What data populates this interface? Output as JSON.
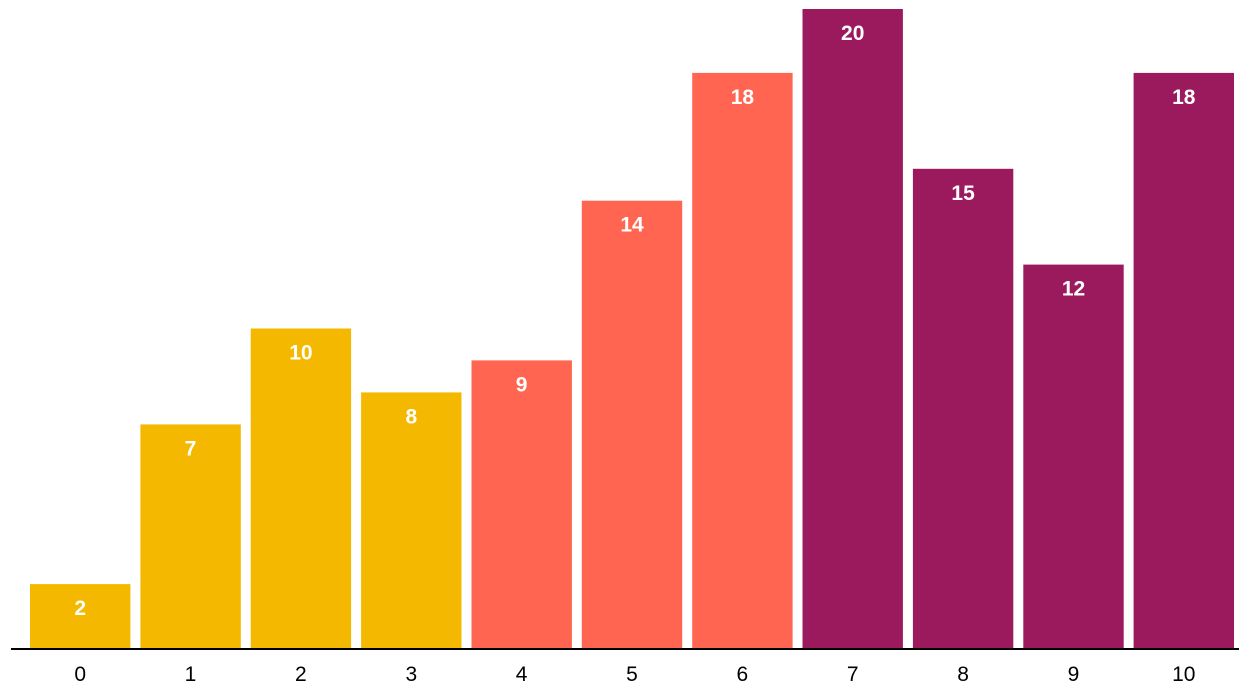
{
  "chart_data": {
    "type": "bar",
    "title": "",
    "xlabel": "",
    "ylabel": "",
    "categories": [
      "0",
      "1",
      "2",
      "3",
      "4",
      "5",
      "6",
      "7",
      "8",
      "9",
      "10"
    ],
    "values": [
      2,
      7,
      10,
      8,
      9,
      14,
      18,
      20,
      15,
      12,
      18
    ],
    "bar_colors": [
      "#F5B800",
      "#F5B800",
      "#F5B800",
      "#F5B800",
      "#FF6550",
      "#FF6550",
      "#FF6550",
      "#9B1A5E",
      "#9B1A5E",
      "#9B1A5E",
      "#9B1A5E"
    ],
    "ylim": [
      0,
      20
    ],
    "grid": false,
    "legend": "none",
    "data_labels": true
  }
}
